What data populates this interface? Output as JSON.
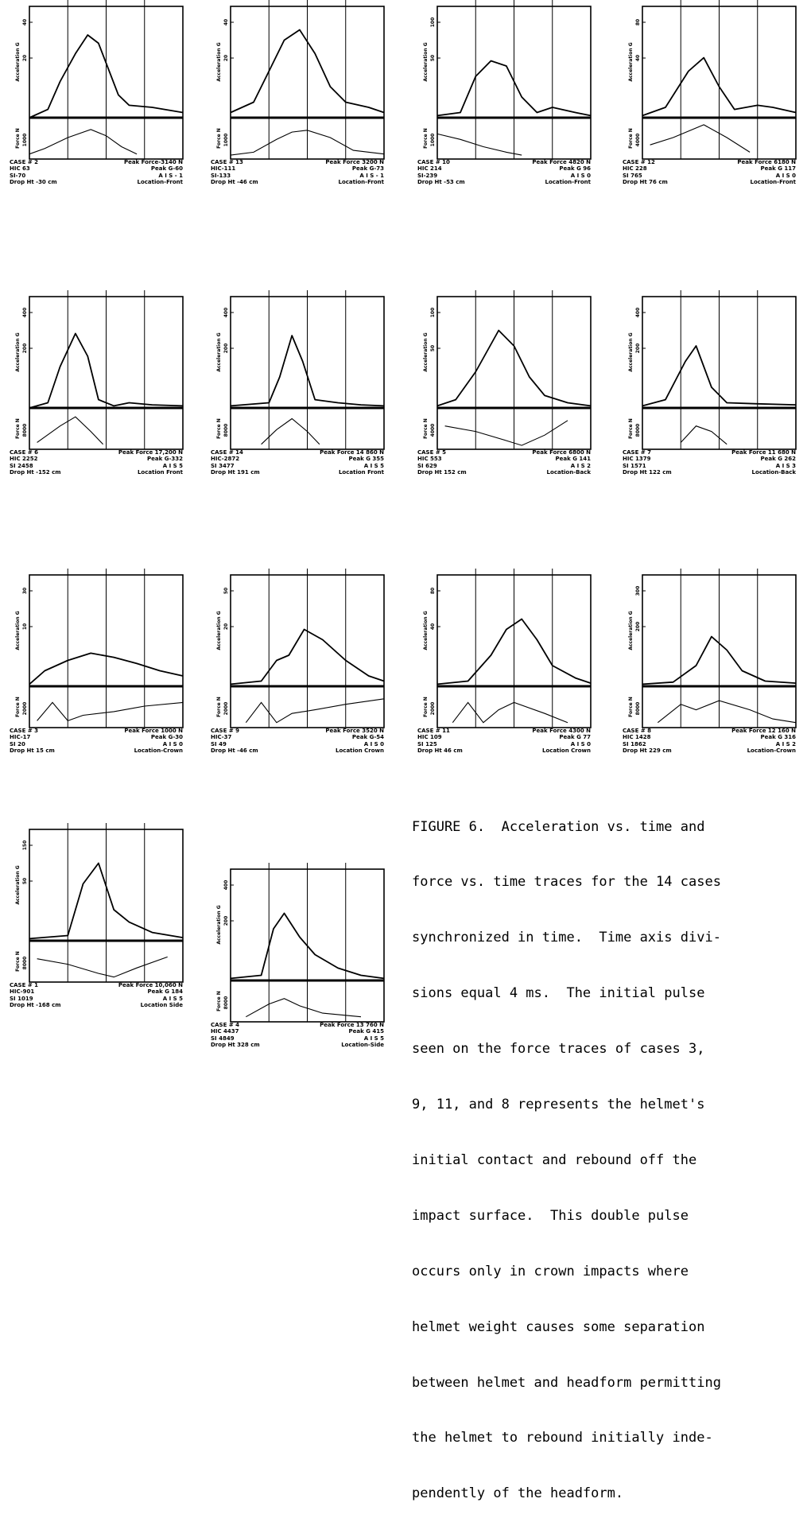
{
  "panels": [
    {
      "case": "CASE # 2",
      "peak_force": "Peak Force-3140 N",
      "hic": "HIC 63",
      "peak_g": "Peak G-60",
      "si": "SI-70",
      "ais": "A I S - 1",
      "drop": "Drop Ht -30 cm",
      "location": "Location-Front",
      "acc_label": "Acceleration G",
      "force_label": "Force N",
      "acc_ticks": [
        "40",
        "20"
      ],
      "force_tick": "1000",
      "acc": [
        [
          0,
          0
        ],
        [
          0.12,
          0.08
        ],
        [
          0.2,
          0.35
        ],
        [
          0.3,
          0.62
        ],
        [
          0.38,
          0.8
        ],
        [
          0.45,
          0.72
        ],
        [
          0.52,
          0.45
        ],
        [
          0.58,
          0.22
        ],
        [
          0.65,
          0.12
        ],
        [
          0.8,
          0.1
        ],
        [
          1,
          0.05
        ]
      ],
      "force": [
        [
          0,
          0.05
        ],
        [
          0.1,
          0.2
        ],
        [
          0.25,
          0.5
        ],
        [
          0.4,
          0.72
        ],
        [
          0.5,
          0.55
        ],
        [
          0.6,
          0.25
        ],
        [
          0.7,
          0.05
        ]
      ]
    },
    {
      "case": "CASE # 13",
      "peak_force": "Peak Force 3200 N",
      "hic": "HIC-111",
      "peak_g": "Peak G-73",
      "si": "SI-133",
      "ais": "A I S - 1",
      "drop": "Drop Ht -46 cm",
      "location": "Location-Front",
      "acc_label": "Acceleration G",
      "force_label": "Force N",
      "acc_ticks": [
        "40",
        "20"
      ],
      "force_tick": "1000",
      "acc": [
        [
          0,
          0.05
        ],
        [
          0.15,
          0.15
        ],
        [
          0.25,
          0.45
        ],
        [
          0.35,
          0.75
        ],
        [
          0.45,
          0.85
        ],
        [
          0.55,
          0.62
        ],
        [
          0.65,
          0.3
        ],
        [
          0.75,
          0.15
        ],
        [
          0.9,
          0.1
        ],
        [
          1,
          0.05
        ]
      ],
      "force": [
        [
          0,
          0.02
        ],
        [
          0.15,
          0.1
        ],
        [
          0.3,
          0.45
        ],
        [
          0.4,
          0.65
        ],
        [
          0.5,
          0.7
        ],
        [
          0.65,
          0.5
        ],
        [
          0.8,
          0.15
        ],
        [
          1,
          0.05
        ]
      ]
    },
    {
      "case": "CASE # 10",
      "peak_force": "Peak Force 4820 N",
      "hic": "HIC 214",
      "peak_g": "Peak G 96",
      "si": "SI-239",
      "ais": "A I S 0",
      "drop": "Drop Ht -53 cm",
      "location": "Location-Front",
      "acc_label": "Acceleration G",
      "force_label": "Force N",
      "acc_ticks": [
        "100",
        "50"
      ],
      "force_tick": "1000",
      "acc": [
        [
          0,
          0.02
        ],
        [
          0.15,
          0.05
        ],
        [
          0.25,
          0.4
        ],
        [
          0.35,
          0.55
        ],
        [
          0.45,
          0.5
        ],
        [
          0.55,
          0.2
        ],
        [
          0.65,
          0.05
        ],
        [
          0.75,
          0.1
        ],
        [
          0.9,
          0.05
        ],
        [
          1,
          0.02
        ]
      ],
      "force": [
        [
          0,
          0.6
        ],
        [
          0.15,
          0.45
        ],
        [
          0.3,
          0.25
        ],
        [
          0.45,
          0.1
        ],
        [
          0.55,
          0.02
        ]
      ]
    },
    {
      "case": "CASE # 12",
      "peak_force": "Peak Force 6180 N",
      "hic": "HIC 228",
      "peak_g": "Peak G 117",
      "si": "SI 765",
      "ais": "A I S 0",
      "drop": "Drop Ht 76 cm",
      "location": "Location-Front",
      "acc_label": "Acceleration G",
      "force_label": "Force N",
      "acc_ticks": [
        "80",
        "40"
      ],
      "force_tick": "4000",
      "acc": [
        [
          0,
          0.02
        ],
        [
          0.15,
          0.1
        ],
        [
          0.3,
          0.45
        ],
        [
          0.4,
          0.58
        ],
        [
          0.5,
          0.3
        ],
        [
          0.6,
          0.08
        ],
        [
          0.75,
          0.12
        ],
        [
          0.85,
          0.1
        ],
        [
          1,
          0.05
        ]
      ],
      "force": [
        [
          0.05,
          0.3
        ],
        [
          0.2,
          0.5
        ],
        [
          0.4,
          0.85
        ],
        [
          0.55,
          0.5
        ],
        [
          0.7,
          0.1
        ]
      ]
    },
    {
      "case": "CASE # 6",
      "peak_force": "Peak Force 17,200 N",
      "hic": "HIC 2252",
      "peak_g": "Peak G-332",
      "si": "SI 2458",
      "ais": "A I S 5",
      "drop": "Drop Ht -152 cm",
      "location": "Location Front",
      "acc_label": "Acceleration G",
      "force_label": "Force N",
      "acc_ticks": [
        "400",
        "200"
      ],
      "force_tick": "8000",
      "acc": [
        [
          0,
          0
        ],
        [
          0.12,
          0.05
        ],
        [
          0.2,
          0.4
        ],
        [
          0.3,
          0.72
        ],
        [
          0.38,
          0.5
        ],
        [
          0.45,
          0.08
        ],
        [
          0.55,
          0.02
        ],
        [
          0.65,
          0.05
        ],
        [
          0.8,
          0.03
        ],
        [
          1,
          0.02
        ]
      ],
      "force": [
        [
          0.05,
          0.1
        ],
        [
          0.2,
          0.55
        ],
        [
          0.3,
          0.8
        ],
        [
          0.4,
          0.4
        ],
        [
          0.48,
          0.05
        ]
      ]
    },
    {
      "case": "CASE # 14",
      "peak_force": "Peak Force 14 860 N",
      "hic": "HIC-2872",
      "peak_g": "Peak G 355",
      "si": "SI 3477",
      "ais": "A I S 5",
      "drop": "Drop Ht 191 cm",
      "location": "Location Front",
      "acc_label": "Acceleration G",
      "force_label": "Force N",
      "acc_ticks": [
        "400",
        "200"
      ],
      "force_tick": "8000",
      "acc": [
        [
          0,
          0.02
        ],
        [
          0.25,
          0.05
        ],
        [
          0.32,
          0.3
        ],
        [
          0.4,
          0.7
        ],
        [
          0.47,
          0.45
        ],
        [
          0.55,
          0.08
        ],
        [
          0.7,
          0.05
        ],
        [
          0.85,
          0.03
        ],
        [
          1,
          0.02
        ]
      ],
      "force": [
        [
          0.2,
          0.05
        ],
        [
          0.3,
          0.45
        ],
        [
          0.4,
          0.75
        ],
        [
          0.5,
          0.4
        ],
        [
          0.58,
          0.05
        ]
      ]
    },
    {
      "case": "CASE # 5",
      "peak_force": "Peak Force 6800 N",
      "hic": "HIC 553",
      "peak_g": "Peak G 141",
      "si": "SI 629",
      "ais": "A I S 2",
      "drop": "Drop Ht 152 cm",
      "location": "Location-Back",
      "acc_label": "Acceleration G",
      "force_label": "Force N",
      "acc_ticks": [
        "100",
        "50"
      ],
      "force_tick": "4000",
      "acc": [
        [
          0,
          0.02
        ],
        [
          0.12,
          0.08
        ],
        [
          0.25,
          0.35
        ],
        [
          0.4,
          0.75
        ],
        [
          0.5,
          0.6
        ],
        [
          0.6,
          0.3
        ],
        [
          0.7,
          0.12
        ],
        [
          0.85,
          0.05
        ],
        [
          1,
          0.02
        ]
      ],
      "force": [
        [
          0.05,
          0.55
        ],
        [
          0.25,
          0.4
        ],
        [
          0.45,
          0.15
        ],
        [
          0.55,
          0.02
        ],
        [
          0.7,
          0.3
        ],
        [
          0.85,
          0.7
        ]
      ]
    },
    {
      "case": "CASE # 7",
      "peak_force": "Peak Force 11 680 N",
      "hic": "HIC 1379",
      "peak_g": "Peak G 262",
      "si": "SI 1571",
      "ais": "A I S 3",
      "drop": "Drop Ht 122 cm",
      "location": "Location-Back",
      "acc_label": "Acceleration G",
      "force_label": "Force N",
      "acc_ticks": [
        "400",
        "200"
      ],
      "force_tick": "8000",
      "acc": [
        [
          0,
          0.02
        ],
        [
          0.15,
          0.08
        ],
        [
          0.28,
          0.45
        ],
        [
          0.35,
          0.6
        ],
        [
          0.45,
          0.2
        ],
        [
          0.55,
          0.05
        ],
        [
          0.75,
          0.04
        ],
        [
          1,
          0.03
        ]
      ],
      "force": [
        [
          0.25,
          0.1
        ],
        [
          0.35,
          0.55
        ],
        [
          0.45,
          0.4
        ],
        [
          0.55,
          0.05
        ]
      ]
    },
    {
      "case": "CASE # 3",
      "peak_force": "Peak Force 1000 N",
      "hic": "HIC-17",
      "peak_g": "Peak G-30",
      "si": "SI 20",
      "ais": "A I S 0",
      "drop": "Drop Ht 15 cm",
      "location": "Location-Crown",
      "acc_label": "Acceleration G",
      "force_label": "Force N",
      "acc_ticks": [
        "30",
        "10"
      ],
      "force_tick": "2000",
      "acc": [
        [
          0,
          0.02
        ],
        [
          0.1,
          0.15
        ],
        [
          0.25,
          0.25
        ],
        [
          0.4,
          0.32
        ],
        [
          0.55,
          0.28
        ],
        [
          0.7,
          0.22
        ],
        [
          0.85,
          0.15
        ],
        [
          1,
          0.1
        ]
      ],
      "force": [
        [
          0.05,
          0.1
        ],
        [
          0.15,
          0.6
        ],
        [
          0.25,
          0.1
        ],
        [
          0.35,
          0.25
        ],
        [
          0.55,
          0.35
        ],
        [
          0.75,
          0.5
        ],
        [
          1,
          0.6
        ]
      ]
    },
    {
      "case": "CASE # 9",
      "peak_force": "Peak Force 3520 N",
      "hic": "HIC-37",
      "peak_g": "Peak G-54",
      "si": "SI 49",
      "ais": "A I S 0",
      "drop": "Drop Ht -46 cm",
      "location": "Location Crown",
      "acc_label": "Acceleration G",
      "force_label": "Force N",
      "acc_ticks": [
        "50",
        "20"
      ],
      "force_tick": "2000",
      "acc": [
        [
          0,
          0.02
        ],
        [
          0.2,
          0.05
        ],
        [
          0.3,
          0.25
        ],
        [
          0.38,
          0.3
        ],
        [
          0.48,
          0.55
        ],
        [
          0.6,
          0.45
        ],
        [
          0.75,
          0.25
        ],
        [
          0.9,
          0.1
        ],
        [
          1,
          0.05
        ]
      ],
      "force": [
        [
          0.1,
          0.05
        ],
        [
          0.2,
          0.6
        ],
        [
          0.3,
          0.05
        ],
        [
          0.4,
          0.3
        ],
        [
          0.55,
          0.4
        ],
        [
          0.75,
          0.55
        ],
        [
          1,
          0.7
        ]
      ]
    },
    {
      "case": "CASE # 11",
      "peak_force": "Peak Force 4300 N",
      "hic": "HIC 109",
      "peak_g": "Peak G 77",
      "si": "SI 125",
      "ais": "A I S 0",
      "drop": "Drop Ht 46 cm",
      "location": "Location Crown",
      "acc_label": "Acceleration G",
      "force_label": "Force N",
      "acc_ticks": [
        "80",
        "40"
      ],
      "force_tick": "2000",
      "acc": [
        [
          0,
          0.02
        ],
        [
          0.2,
          0.05
        ],
        [
          0.35,
          0.3
        ],
        [
          0.45,
          0.55
        ],
        [
          0.55,
          0.65
        ],
        [
          0.65,
          0.45
        ],
        [
          0.75,
          0.2
        ],
        [
          0.9,
          0.08
        ],
        [
          1,
          0.03
        ]
      ],
      "force": [
        [
          0.1,
          0.05
        ],
        [
          0.2,
          0.6
        ],
        [
          0.3,
          0.05
        ],
        [
          0.4,
          0.4
        ],
        [
          0.5,
          0.6
        ],
        [
          0.7,
          0.3
        ],
        [
          0.85,
          0.05
        ]
      ]
    },
    {
      "case": "CASE # 8",
      "peak_force": "Peak Force 12 160 N",
      "hic": "HIC 1428",
      "peak_g": "Peak G 316",
      "si": "SI 1862",
      "ais": "A I S 2",
      "drop": "Drop Ht 229 cm",
      "location": "Location-Crown",
      "acc_label": "Acceleration G",
      "force_label": "Force N",
      "acc_ticks": [
        "300",
        "200"
      ],
      "force_tick": "8000",
      "acc": [
        [
          0,
          0.02
        ],
        [
          0.2,
          0.04
        ],
        [
          0.35,
          0.2
        ],
        [
          0.45,
          0.48
        ],
        [
          0.55,
          0.35
        ],
        [
          0.65,
          0.15
        ],
        [
          0.8,
          0.05
        ],
        [
          1,
          0.03
        ]
      ],
      "force": [
        [
          0.1,
          0.05
        ],
        [
          0.25,
          0.55
        ],
        [
          0.35,
          0.4
        ],
        [
          0.5,
          0.65
        ],
        [
          0.7,
          0.4
        ],
        [
          0.85,
          0.15
        ],
        [
          1,
          0.05
        ]
      ]
    },
    {
      "case": "CASE # 1",
      "peak_force": "Peak Force 10,060 N",
      "hic": "HIC-901",
      "peak_g": "Peak G 184",
      "si": "SI 1019",
      "ais": "A I S 5",
      "drop": "Drop Ht -168 cm",
      "location": "Location Side",
      "acc_label": "Acceleration G",
      "force_label": "Force N",
      "acc_ticks": [
        "150",
        "50"
      ],
      "force_tick": "8000",
      "acc": [
        [
          0,
          0.02
        ],
        [
          0.25,
          0.05
        ],
        [
          0.35,
          0.55
        ],
        [
          0.45,
          0.75
        ],
        [
          0.55,
          0.3
        ],
        [
          0.65,
          0.18
        ],
        [
          0.8,
          0.08
        ],
        [
          1,
          0.03
        ]
      ],
      "force": [
        [
          0.05,
          0.55
        ],
        [
          0.25,
          0.4
        ],
        [
          0.45,
          0.15
        ],
        [
          0.55,
          0.05
        ],
        [
          0.7,
          0.3
        ],
        [
          0.9,
          0.6
        ]
      ]
    },
    {
      "case": "CASE # 4",
      "peak_force": "Peak Force 13 760 N",
      "hic": "HIC 4437",
      "peak_g": "Peak G 415",
      "si": "SI 4849",
      "ais": "A I S 5",
      "drop": "Drop Ht 328 cm",
      "location": "Location-Side",
      "acc_label": "Acceleration G",
      "force_label": "Force N",
      "acc_ticks": [
        "400",
        "200"
      ],
      "force_tick": "8000",
      "acc": [
        [
          0,
          0.02
        ],
        [
          0.2,
          0.05
        ],
        [
          0.28,
          0.5
        ],
        [
          0.35,
          0.65
        ],
        [
          0.45,
          0.42
        ],
        [
          0.55,
          0.25
        ],
        [
          0.7,
          0.12
        ],
        [
          0.85,
          0.05
        ],
        [
          1,
          0.02
        ]
      ],
      "force": [
        [
          0.1,
          0.05
        ],
        [
          0.25,
          0.4
        ],
        [
          0.35,
          0.55
        ],
        [
          0.45,
          0.35
        ],
        [
          0.6,
          0.15
        ],
        [
          0.85,
          0.05
        ]
      ]
    }
  ],
  "caption": {
    "lines": [
      "FIGURE 6.  Acceleration vs. time and",
      "force vs. time traces for the 14 cases",
      "synchronized in time.  Time axis divi-",
      "sions equal 4 ms.  The initial pulse",
      "seen on the force traces of cases 3,",
      "9, 11, and 8 represents the helmet's",
      "initial contact and rebound off the",
      "impact surface.  This double pulse",
      "occurs only in crown impacts where",
      "helmet weight causes some separation",
      "between helmet and headform permitting",
      "the helmet to rebound initially inde-",
      "pendently of the headform."
    ]
  }
}
